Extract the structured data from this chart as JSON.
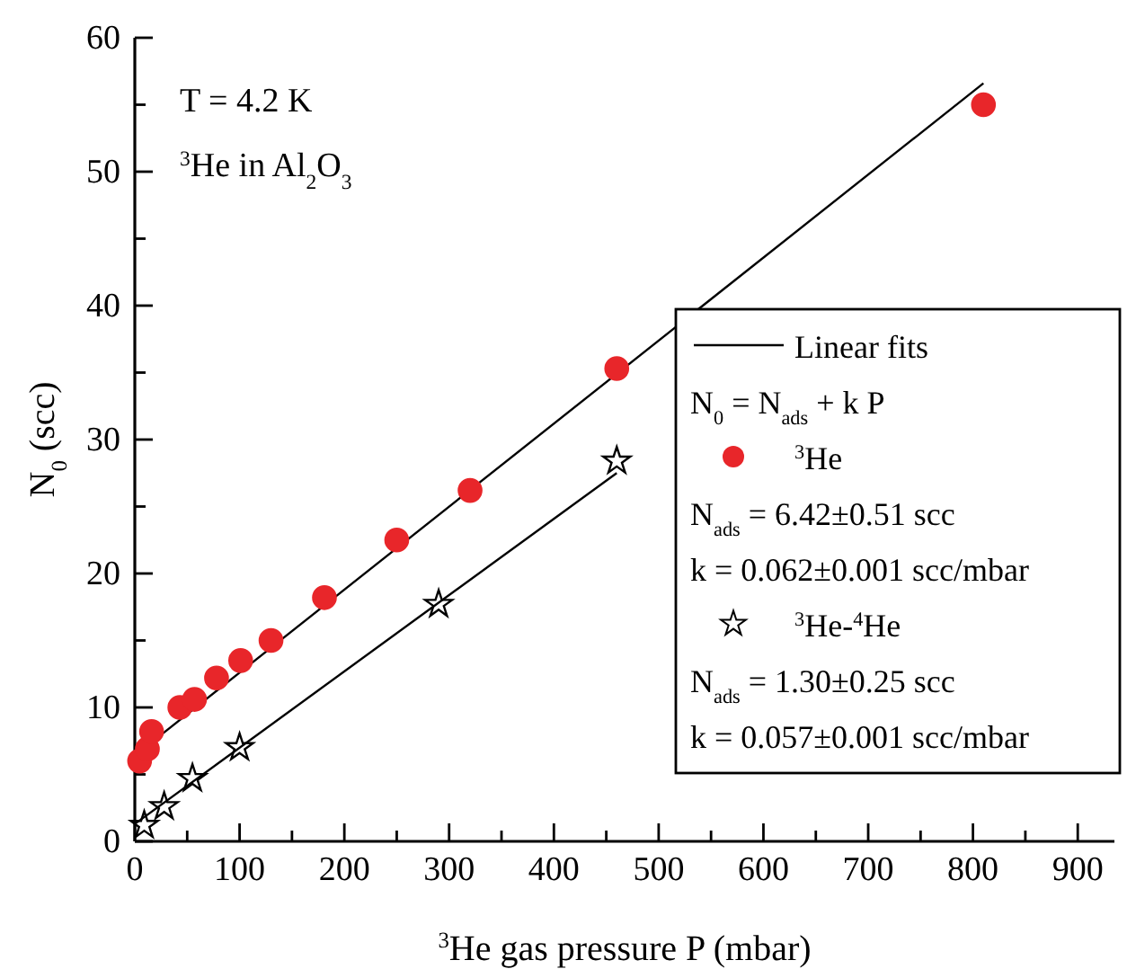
{
  "chart_data": {
    "type": "scatter",
    "xlabel": "$^{3}$He gas pressure P (mbar)",
    "ylabel": "N$_{0}$ (scc)",
    "xlim": [
      0,
      935
    ],
    "ylim": [
      0,
      60
    ],
    "xticks": [
      0,
      {
        "value": 50,
        "label": null
      },
      100,
      {
        "value": 150,
        "label": null
      },
      200,
      {
        "value": 250,
        "label": null
      },
      300,
      {
        "value": 350,
        "label": null
      },
      400,
      {
        "value": 450,
        "label": null
      },
      500,
      {
        "value": 550,
        "label": null
      },
      600,
      {
        "value": 650,
        "label": null
      },
      700,
      {
        "value": 750,
        "label": null
      },
      800,
      {
        "value": 850,
        "label": null
      },
      900
    ],
    "yticks": [
      0,
      {
        "value": 5,
        "label": null
      },
      10,
      {
        "value": 15,
        "label": null
      },
      20,
      {
        "value": 25,
        "label": null
      },
      30,
      {
        "value": 35,
        "label": null
      },
      40,
      {
        "value": 45,
        "label": null
      },
      50,
      {
        "value": 55,
        "label": null
      },
      60
    ],
    "grid": false,
    "legend": "right",
    "series": [
      {
        "name": "Linear fits",
        "type": "line",
        "color": "#000000",
        "marker": "none",
        "line_style": "solid",
        "x": [
          0,
          810
        ],
        "values": [
          6.4,
          56.6
        ]
      },
      {
        "type": "line",
        "color": "#000000",
        "marker": "none",
        "line_style": "solid",
        "x": [
          0,
          460
        ],
        "values": [
          1.3,
          27.5
        ]
      },
      {
        "name": "$^{3}$He",
        "color": "#e8262a",
        "marker": "circle",
        "x": [
          4.6,
          12,
          16,
          43,
          57,
          78,
          101,
          130,
          181,
          250,
          320,
          460,
          810
        ],
        "values": [
          6.0,
          6.9,
          8.2,
          10.0,
          10.6,
          12.2,
          13.5,
          15.0,
          18.2,
          22.5,
          26.2,
          35.3,
          55.0
        ]
      },
      {
        "name": "$^{3}$He-$^{4}$He",
        "color": "#000000",
        "marker": "star",
        "x": [
          9,
          28,
          55,
          100,
          290,
          460
        ],
        "values": [
          1.2,
          2.6,
          4.7,
          7.0,
          17.7,
          28.4
        ]
      }
    ],
    "annotations": [
      "T = 4.2 K",
      "$^{3}$He in Al$_{2}$O$_{3}$",
      "N$_{0}$ = N$_{ads}$ + k P",
      "N$_{ads}$ = 6.42±0.51 scc",
      "k = 0.062±0.001 scc/mbar",
      "N$_{ads}$ = 1.30±0.25 scc",
      "k = 0.057±0.001 scc/mbar"
    ]
  }
}
